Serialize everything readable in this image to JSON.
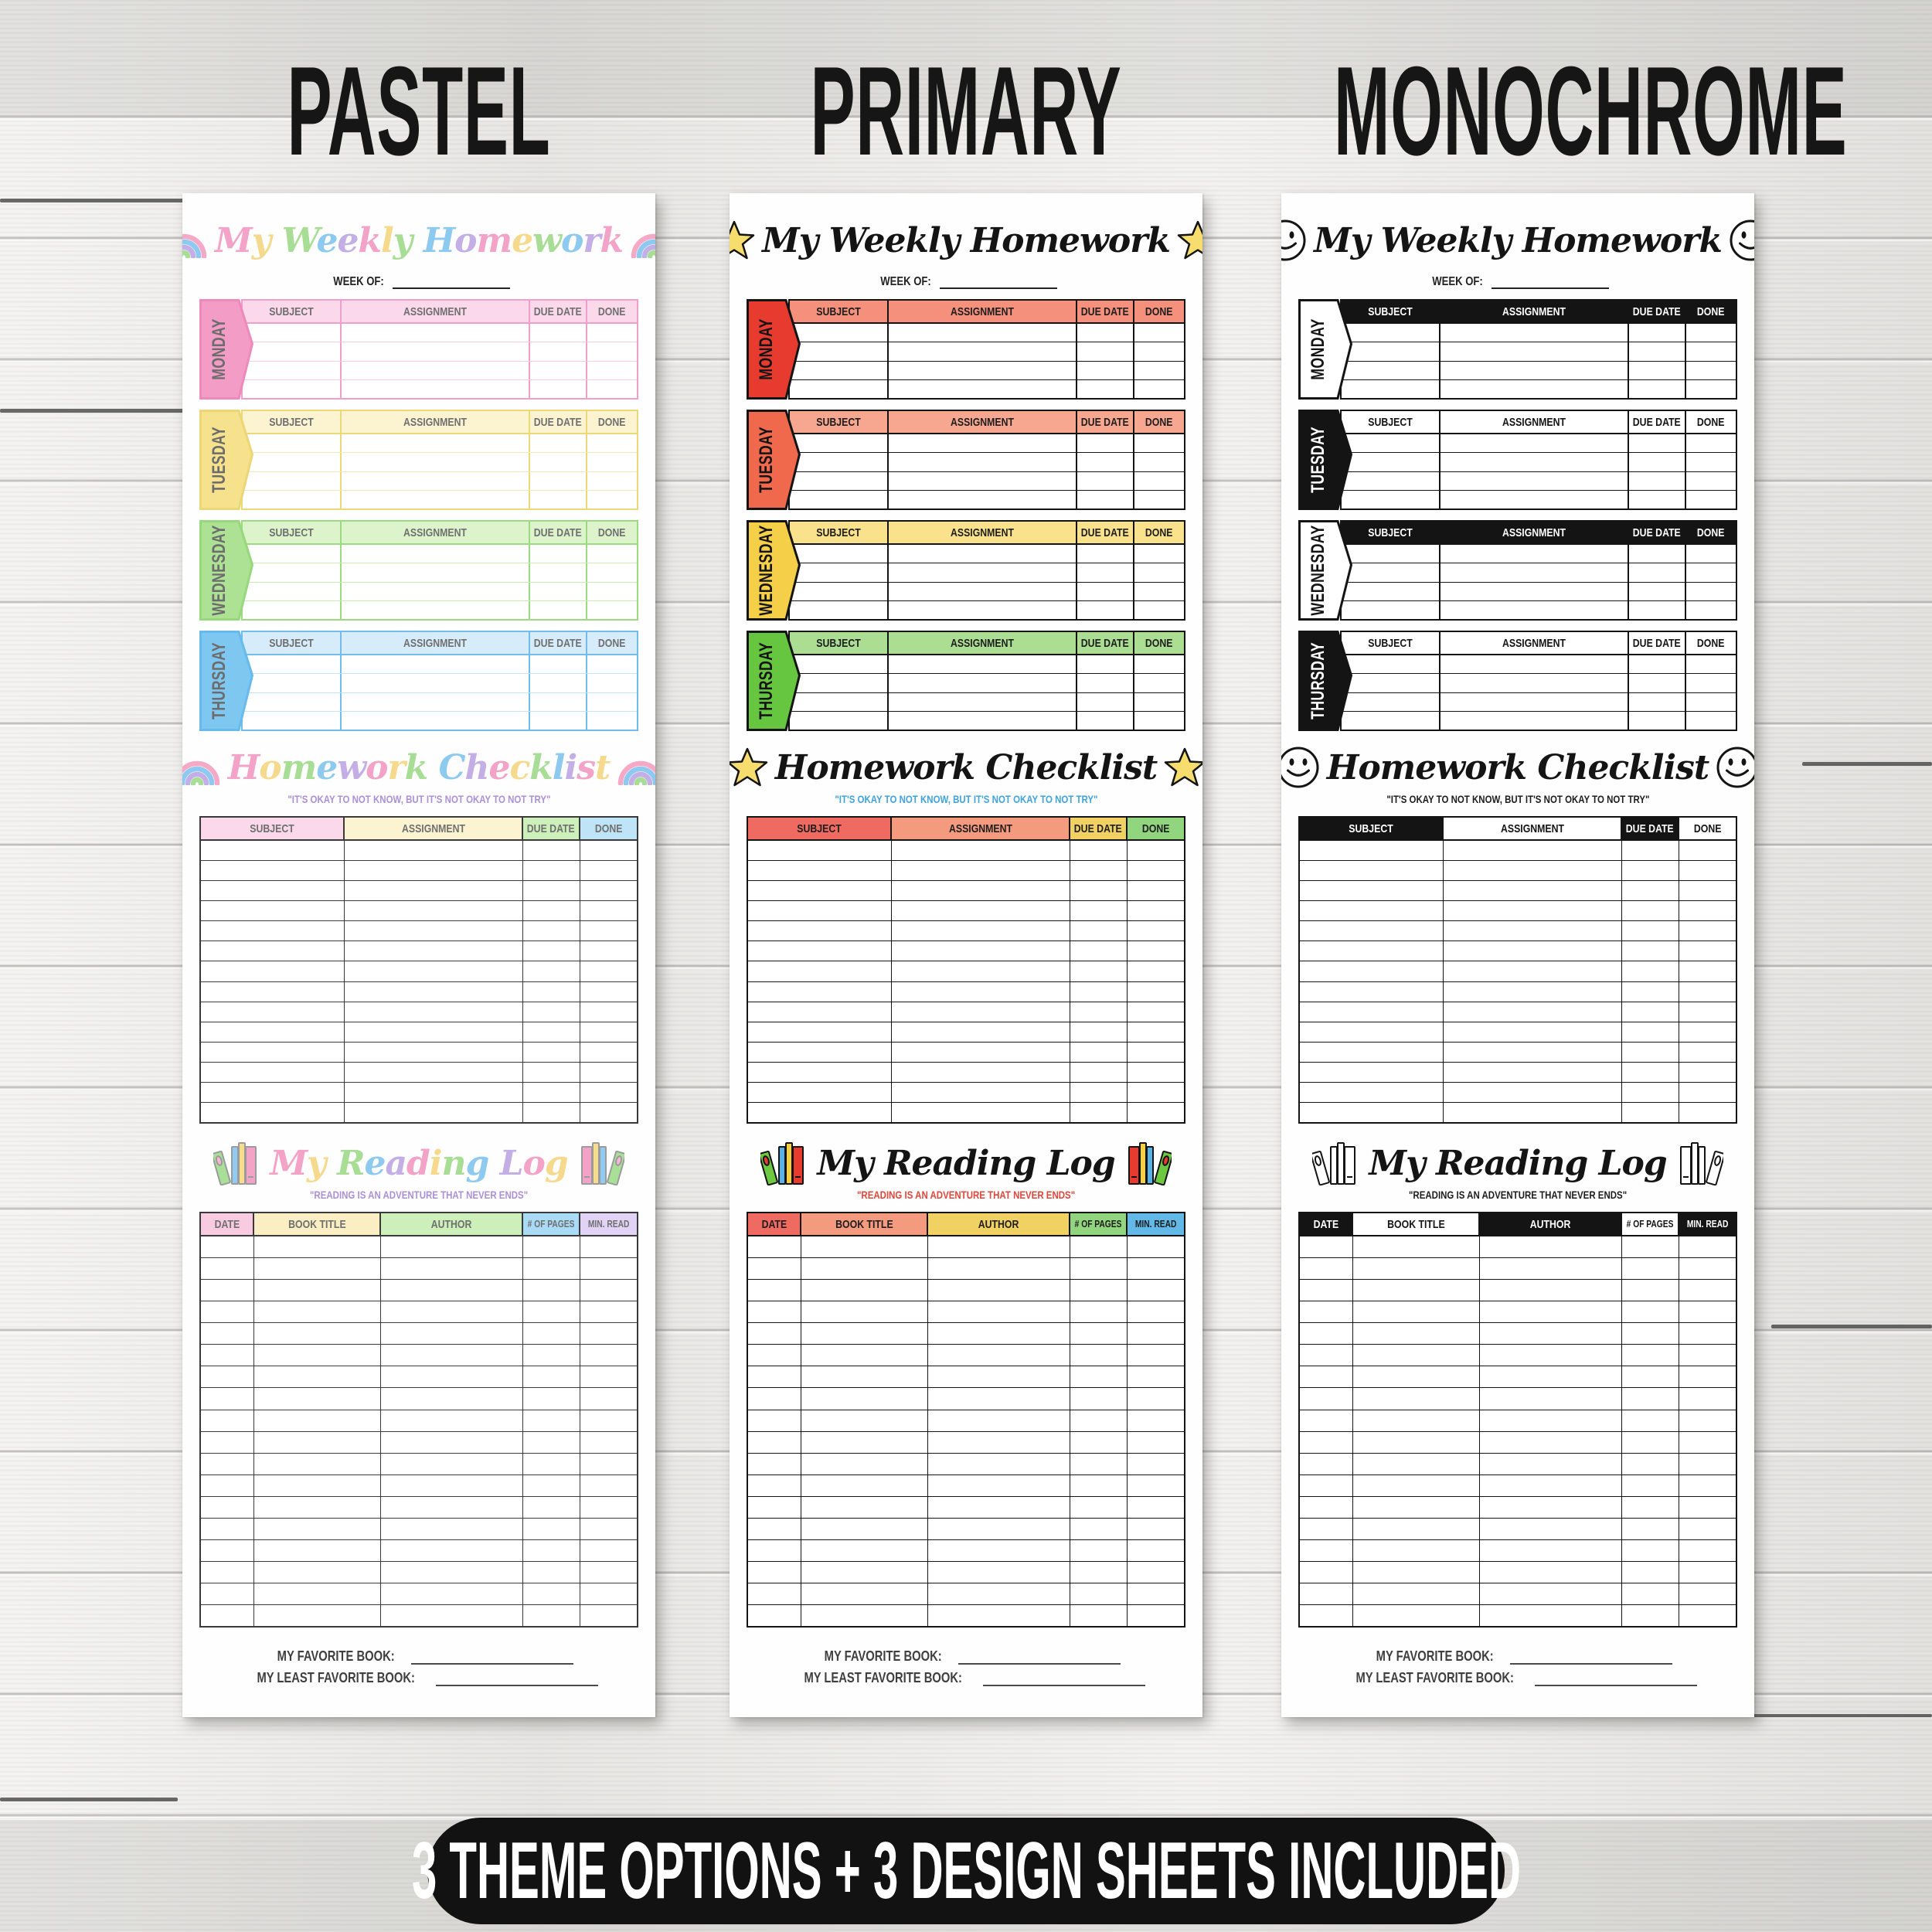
{
  "page": {
    "column_titles": [
      "PASTEL",
      "PRIMARY",
      "MONOCHROME"
    ],
    "banner": {
      "label": "3 THEME OPTIONS + 3 DESIGN SHEETS INCLUDED",
      "bg": "#121212",
      "fg": "#ffffff"
    },
    "background_color": "#ebeae7"
  },
  "shared": {
    "weekly_title": "My Weekly Homework",
    "week_of_label": "WEEK OF:",
    "day_columns": [
      "SUBJECT",
      "ASSIGNMENT",
      "DUE DATE",
      "DONE"
    ],
    "checklist_title": "Homework Checklist",
    "checklist_quote": "\"IT'S OKAY TO NOT KNOW, BUT IT'S NOT OKAY TO NOT TRY\"",
    "reading_title": "My Reading Log",
    "reading_quote": "\"READING IS AN ADVENTURE THAT NEVER ENDS\"",
    "reading_columns": [
      "DATE",
      "BOOK TITLE",
      "AUTHOR",
      "# OF PAGES",
      "MIN. READ"
    ],
    "favorite_book_label": "MY FAVORITE BOOK:",
    "least_favorite_book_label": "MY LEAST FAVORITE BOOK:",
    "weekly_day_rows": 4,
    "checklist_rows": 14,
    "reading_rows": 18
  },
  "themes": [
    {
      "name": "pastel",
      "icon": "rainbow",
      "icon_name": "rainbow-icon",
      "reading_icon_name": "books-icon",
      "title_palette": [
        "#f2a3c7",
        "#f5d98d",
        "#a8dd96",
        "#8ec9f0",
        "#c3aee6"
      ],
      "rainbow_colors": [
        "#f5a9c7",
        "#8ec9f0",
        "#c3aee6",
        "#a8dd96"
      ],
      "checklist_quote_color": "#ab90d8",
      "reading_quote_color": "#ab90d8",
      "plain_border": "#3a3a3a",
      "hard_line": null,
      "days": [
        {
          "label": "MONDAY",
          "tab": "#f29cc6",
          "tab_stroke": "#ec8abb",
          "tab_text": "#6c6c6c",
          "head": "#fbd8ea",
          "border": "#ef9fc9",
          "row_line": "#f7cde2",
          "head_text": "#6f6f6f"
        },
        {
          "label": "TUESDAY",
          "tab": "#f6e28d",
          "tab_stroke": "#ecd678",
          "tab_text": "#6c6c6c",
          "head": "#fcf3d0",
          "border": "#ecd877",
          "row_line": "#f5e9b8",
          "head_text": "#6f6f6f"
        },
        {
          "label": "WEDNESDAY",
          "tab": "#ade294",
          "tab_stroke": "#97d87c",
          "tab_text": "#6c6c6c",
          "head": "#dcf3cc",
          "border": "#9bdc80",
          "row_line": "#c9eeb6",
          "head_text": "#6f6f6f"
        },
        {
          "label": "THURSDAY",
          "tab": "#7ec7f0",
          "tab_stroke": "#67bbec",
          "tab_text": "#6c6c6c",
          "head": "#d7ecfa",
          "border": "#6fbdec",
          "row_line": "#bfe3f7",
          "head_text": "#6f6f6f"
        }
      ],
      "checklist_head": [
        {
          "bg": "#fbd8ea",
          "fg": "#6f6f6f"
        },
        {
          "bg": "#fcf3d0",
          "fg": "#6f6f6f"
        },
        {
          "bg": "#cdefba",
          "fg": "#6f6f6f"
        },
        {
          "bg": "#bfe4f8",
          "fg": "#6f6f6f"
        }
      ],
      "reading_head": [
        {
          "bg": "#f8cbe1",
          "fg": "#6f6f6f"
        },
        {
          "bg": "#faeec2",
          "fg": "#6f6f6f"
        },
        {
          "bg": "#cdefba",
          "fg": "#6f6f6f"
        },
        {
          "bg": "#a9daf6",
          "fg": "#6f6f6f"
        },
        {
          "bg": "#e2d3f6",
          "fg": "#6f6f6f"
        }
      ],
      "book_colors": [
        "#a9e098",
        "#f4a3c8",
        "#8fcbf2",
        "#f6dd8e"
      ],
      "book_oval": "#f4b8d4",
      "book_stroke": "#9b9b9b"
    },
    {
      "name": "primary",
      "icon": "star",
      "icon_name": "star-icon",
      "reading_icon_name": "books-icon",
      "title_color": "#141414",
      "star_fill": "#f7dd6d",
      "checklist_quote_color": "#3fa3dc",
      "reading_quote_color": "#e0463a",
      "plain_border": "#141414",
      "hard_line": "#141414",
      "days": [
        {
          "label": "MONDAY",
          "tab": "#e73b30",
          "tab_stroke": "#141414",
          "tab_text": "#141414",
          "head": "#f4907c",
          "border": "#141414",
          "row_line": "#141414",
          "head_text": "#1d1d1d"
        },
        {
          "label": "TUESDAY",
          "tab": "#f0694c",
          "tab_stroke": "#141414",
          "tab_text": "#141414",
          "head": "#f7a68f",
          "border": "#141414",
          "row_line": "#141414",
          "head_text": "#1d1d1d"
        },
        {
          "label": "WEDNESDAY",
          "tab": "#f6cf48",
          "tab_stroke": "#141414",
          "tab_text": "#141414",
          "head": "#fae28d",
          "border": "#141414",
          "row_line": "#141414",
          "head_text": "#1d1d1d"
        },
        {
          "label": "THURSDAY",
          "tab": "#67c63f",
          "tab_stroke": "#141414",
          "tab_text": "#141414",
          "head": "#abde92",
          "border": "#141414",
          "row_line": "#141414",
          "head_text": "#1d1d1d"
        }
      ],
      "checklist_head": [
        {
          "bg": "#ef6a60",
          "fg": "#1d1d1d"
        },
        {
          "bg": "#f49a7e",
          "fg": "#1d1d1d"
        },
        {
          "bg": "#f1d161",
          "fg": "#1d1d1d"
        },
        {
          "bg": "#92d57f",
          "fg": "#1d1d1d"
        }
      ],
      "reading_head": [
        {
          "bg": "#ef6a60",
          "fg": "#1d1d1d"
        },
        {
          "bg": "#f49a7e",
          "fg": "#1d1d1d"
        },
        {
          "bg": "#f1d161",
          "fg": "#1d1d1d"
        },
        {
          "bg": "#92d57f",
          "fg": "#1d1d1d"
        },
        {
          "bg": "#62b9e8",
          "fg": "#1d1d1d"
        }
      ],
      "book_colors": [
        "#6ec842",
        "#e73b30",
        "#55b3e8",
        "#f6cf48"
      ],
      "book_oval": "#e73b30",
      "book_stroke": "#141414"
    },
    {
      "name": "monochrome",
      "icon": "smiley",
      "icon_name": "smiley-icon",
      "reading_icon_name": "books-icon",
      "title_color": "#141414",
      "checklist_quote_color": "#1d1d1d",
      "reading_quote_color": "#1d1d1d",
      "plain_border": "#141414",
      "hard_line": "#141414",
      "days": [
        {
          "label": "MONDAY",
          "tab": "#ffffff",
          "tab_stroke": "#141414",
          "tab_text": "#141414",
          "head": "#141414",
          "border": "#141414",
          "row_line": "#141414",
          "head_text": "#ffffff"
        },
        {
          "label": "TUESDAY",
          "tab": "#141414",
          "tab_stroke": "#141414",
          "tab_text": "#ffffff",
          "head": "#ffffff",
          "border": "#141414",
          "row_line": "#141414",
          "head_text": "#141414"
        },
        {
          "label": "WEDNESDAY",
          "tab": "#ffffff",
          "tab_stroke": "#141414",
          "tab_text": "#141414",
          "head": "#141414",
          "border": "#141414",
          "row_line": "#141414",
          "head_text": "#ffffff"
        },
        {
          "label": "THURSDAY",
          "tab": "#141414",
          "tab_stroke": "#141414",
          "tab_text": "#ffffff",
          "head": "#ffffff",
          "border": "#141414",
          "row_line": "#141414",
          "head_text": "#141414"
        }
      ],
      "checklist_head": [
        {
          "bg": "#141414",
          "fg": "#ffffff"
        },
        {
          "bg": "#ffffff",
          "fg": "#141414"
        },
        {
          "bg": "#141414",
          "fg": "#ffffff"
        },
        {
          "bg": "#ffffff",
          "fg": "#141414"
        }
      ],
      "reading_head": [
        {
          "bg": "#141414",
          "fg": "#ffffff"
        },
        {
          "bg": "#ffffff",
          "fg": "#141414"
        },
        {
          "bg": "#141414",
          "fg": "#ffffff"
        },
        {
          "bg": "#ffffff",
          "fg": "#141414"
        },
        {
          "bg": "#141414",
          "fg": "#ffffff"
        }
      ],
      "book_colors": [
        "#ffffff",
        "#ffffff",
        "#ffffff",
        "#ffffff"
      ],
      "book_oval": "#ffffff",
      "book_stroke": "#141414"
    }
  ]
}
